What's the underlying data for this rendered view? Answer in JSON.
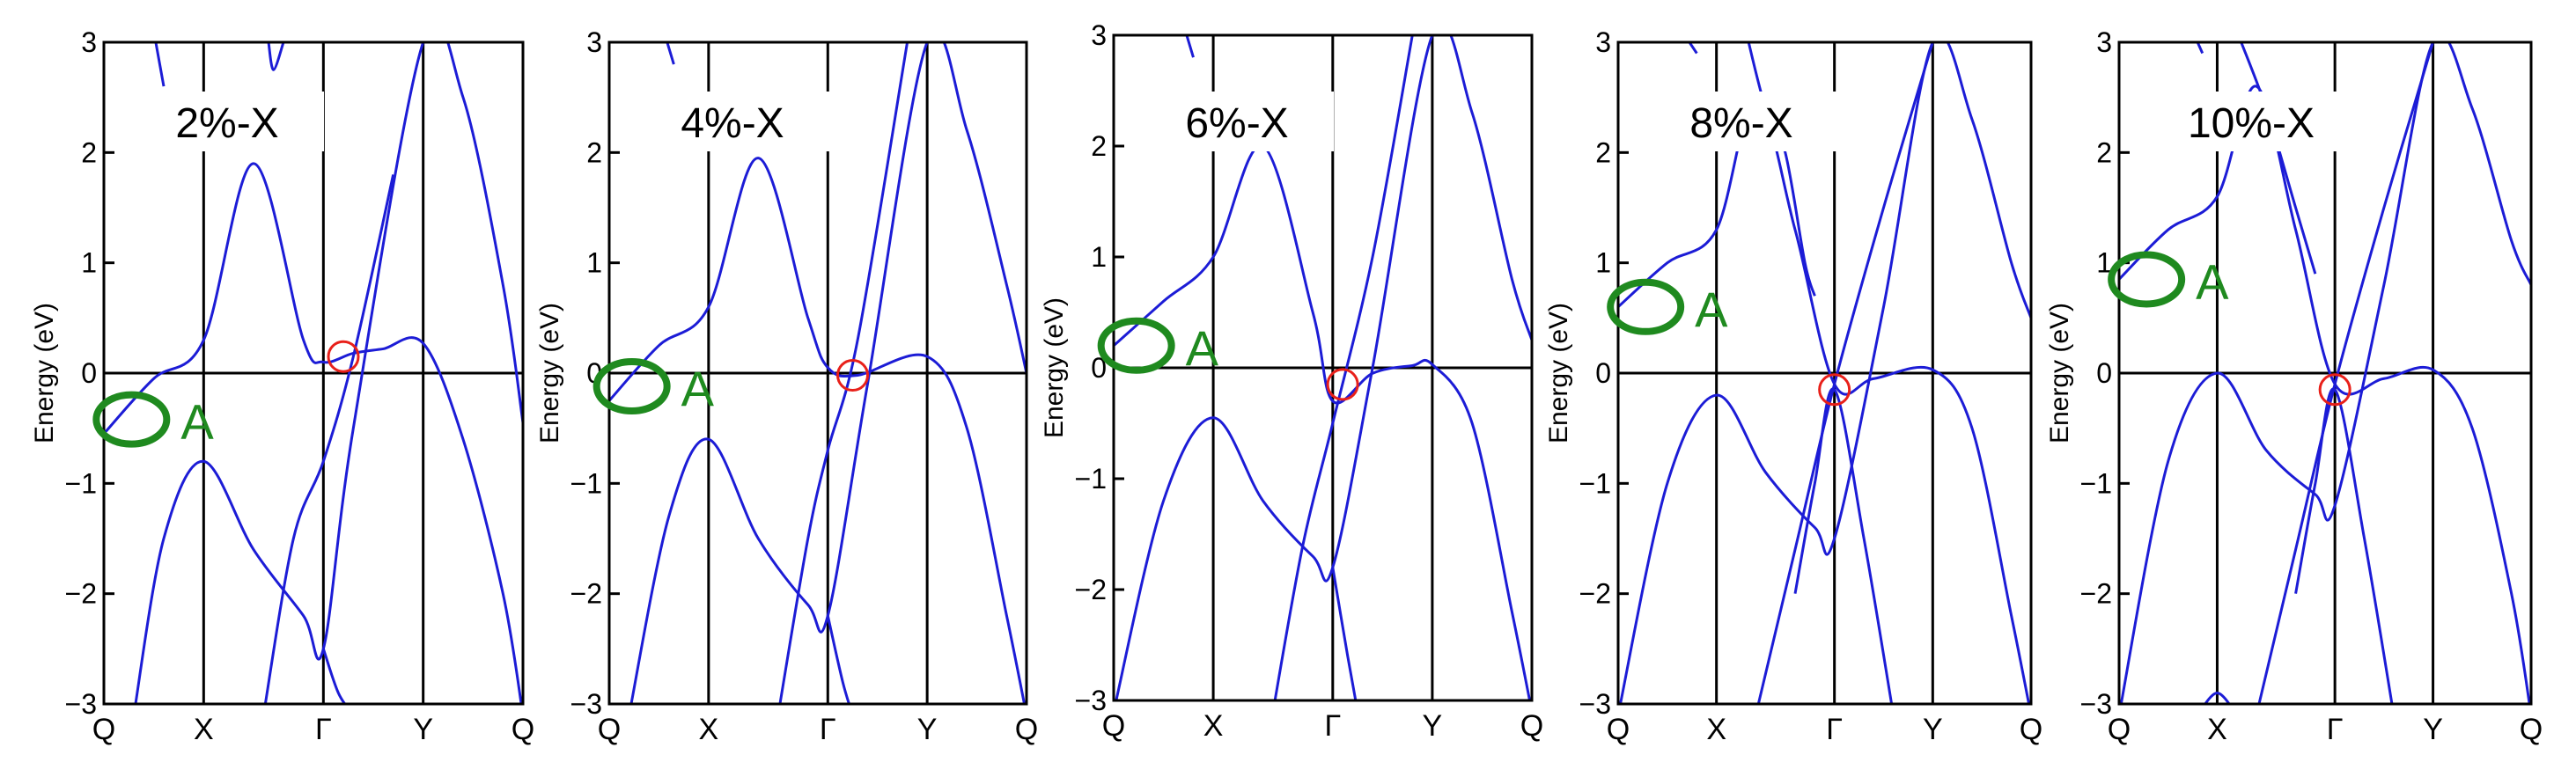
{
  "figure": {
    "colors": {
      "band": "#1c1cd6",
      "axis": "#000000",
      "valley_marker": "#1f8a1f",
      "crossing_marker": "#e8201a",
      "label_bg": "#ffffff"
    }
  },
  "chart_data": [
    {
      "type": "line",
      "title": "2%-X",
      "ylabel": "Energy (eV)",
      "ylim": [
        -3,
        3
      ],
      "yticks": [
        "3",
        "2",
        "1",
        "0",
        "−1",
        "−2",
        "−3"
      ],
      "xticks": [
        "Q",
        "X",
        "Γ",
        "Y",
        "Q"
      ],
      "xtick_positions": [
        0,
        1,
        2.2,
        3.2,
        4.2
      ],
      "fermi_level": 0,
      "valley_marker": {
        "label": "A",
        "x": 0.1,
        "y": -0.42
      },
      "crossing_marker": {
        "x": 2.4,
        "y": 0.15
      },
      "series": [
        {
          "x": [
            0,
            0.5,
            1,
            1.5,
            2,
            2.2,
            2.5,
            2.8,
            3.2,
            3.6,
            4,
            4.2
          ],
          "y": [
            -0.55,
            -0.05,
            0.3,
            1.9,
            0.3,
            0.1,
            0.18,
            0.22,
            0.27,
            -0.6,
            -2.0,
            -3.1
          ]
        },
        {
          "x": [
            0.3,
            0.6,
            1,
            1.5,
            2,
            2.2,
            2.5,
            3.2,
            3.6,
            4,
            4.2
          ],
          "y": [
            -3.1,
            -1.5,
            -0.8,
            -1.6,
            -2.2,
            -2.5,
            -0.5,
            3.0,
            2.5,
            0.8,
            -0.45
          ]
        },
        {
          "x": [
            1.6,
            1.9,
            2.2,
            2.5,
            2.9
          ],
          "y": [
            -3.1,
            -1.5,
            -0.8,
            0.15,
            1.8
          ]
        },
        {
          "x": [
            2.2,
            2.35,
            2.5
          ],
          "y": [
            -2.5,
            -2.9,
            -3.1
          ]
        },
        {
          "x": [
            1.65,
            1.7,
            1.8
          ],
          "y": [
            3.0,
            2.75,
            3.0
          ]
        },
        {
          "x": [
            0.5,
            0.6
          ],
          "y": [
            3.1,
            2.6
          ]
        }
      ]
    },
    {
      "type": "line",
      "title": "4%-X",
      "ylabel": "Energy (eV)",
      "ylim": [
        -3,
        3
      ],
      "yticks": [
        "3",
        "2",
        "1",
        "0",
        "−1",
        "−2",
        "−3"
      ],
      "xticks": [
        "Q",
        "X",
        "Γ",
        "Y",
        "Q"
      ],
      "xtick_positions": [
        0,
        1,
        2.2,
        3.2,
        4.2
      ],
      "fermi_level": 0,
      "valley_marker": {
        "label": "A",
        "x": 0.05,
        "y": -0.12
      },
      "crossing_marker": {
        "x": 2.45,
        "y": -0.02
      },
      "series": [
        {
          "x": [
            0,
            0.5,
            1,
            1.5,
            2,
            2.2,
            2.5,
            3.2,
            3.6,
            4,
            4.2
          ],
          "y": [
            -0.25,
            0.25,
            0.6,
            1.95,
            0.5,
            0.05,
            -0.02,
            0.15,
            -0.5,
            -2.2,
            -3.1
          ]
        },
        {
          "x": [
            0.2,
            0.6,
            1,
            1.5,
            2,
            2.2,
            2.6,
            3.2,
            3.6,
            4,
            4.2
          ],
          "y": [
            -3.1,
            -1.3,
            -0.6,
            -1.5,
            -2.1,
            -2.2,
            -0.1,
            3.0,
            2.2,
            0.8,
            0.0
          ]
        },
        {
          "x": [
            1.7,
            2.0,
            2.2,
            2.5,
            3.0
          ],
          "y": [
            -3.1,
            -1.5,
            -0.7,
            0.3,
            3.0
          ]
        },
        {
          "x": [
            2.2,
            2.35,
            2.45
          ],
          "y": [
            -2.2,
            -2.8,
            -3.1
          ]
        },
        {
          "x": [
            0.55,
            0.65
          ],
          "y": [
            3.1,
            2.8
          ]
        }
      ]
    },
    {
      "type": "line",
      "title": "6%-X",
      "ylabel": "Energy (eV)",
      "ylim": [
        -3,
        3
      ],
      "yticks": [
        "3",
        "2",
        "1",
        "0",
        "−1",
        "−2",
        "−3"
      ],
      "xticks": [
        "Q",
        "X",
        "Γ",
        "Y",
        "Q"
      ],
      "xtick_positions": [
        0,
        1,
        2.2,
        3.2,
        4.2
      ],
      "fermi_level": 0,
      "valley_marker": {
        "label": "A",
        "x": 0.05,
        "y": 0.2
      },
      "crossing_marker": {
        "x": 2.3,
        "y": -0.15
      },
      "series": [
        {
          "x": [
            0,
            0.5,
            1,
            1.5,
            2,
            2.2,
            2.6,
            3.0,
            3.2,
            3.6,
            4,
            4.2
          ],
          "y": [
            0.2,
            0.6,
            1.0,
            2.0,
            0.5,
            -0.3,
            -0.05,
            0.02,
            0.03,
            -0.5,
            -2.2,
            -3.1
          ]
        },
        {
          "x": [
            0.0,
            0.5,
            1,
            1.5,
            2,
            2.2,
            2.6,
            3.2,
            3.6,
            4,
            4.2
          ],
          "y": [
            -3.1,
            -1.2,
            -0.45,
            -1.2,
            -1.7,
            -1.8,
            0.0,
            3.0,
            2.3,
            0.8,
            0.25
          ]
        },
        {
          "x": [
            1.6,
            1.9,
            2.2,
            2.6,
            3.0
          ],
          "y": [
            -3.1,
            -1.6,
            -0.5,
            1.0,
            3.0
          ]
        },
        {
          "x": [
            2.2,
            2.35,
            2.45
          ],
          "y": [
            -1.8,
            -2.6,
            -3.1
          ]
        },
        {
          "x": [
            0.7,
            0.8
          ],
          "y": [
            3.1,
            2.8
          ]
        }
      ]
    },
    {
      "type": "line",
      "title": "8%-X",
      "ylabel": "Energy (eV)",
      "ylim": [
        -3,
        3
      ],
      "yticks": [
        "3",
        "2",
        "1",
        "0",
        "−1",
        "−2",
        "−3"
      ],
      "xticks": [
        "Q",
        "X",
        "Γ",
        "Y",
        "Q"
      ],
      "xtick_positions": [
        0,
        1,
        2.2,
        3.2,
        4.2
      ],
      "fermi_level": 0,
      "valley_marker": {
        "label": "A",
        "x": 0.1,
        "y": 0.6
      },
      "crossing_marker": {
        "x": 2.2,
        "y": -0.15
      },
      "series": [
        {
          "x": [
            0,
            0.5,
            1,
            1.4,
            1.8,
            2.2,
            2.6,
            3.2,
            3.6,
            4,
            4.2
          ],
          "y": [
            0.6,
            1.0,
            1.3,
            2.5,
            1.3,
            -0.1,
            -0.05,
            0.03,
            -0.5,
            -2.2,
            -3.1
          ]
        },
        {
          "x": [
            0.0,
            0.5,
            1,
            1.5,
            2.0,
            2.2,
            2.7,
            3.2,
            3.6,
            4,
            4.2
          ],
          "y": [
            -3.1,
            -1.0,
            -0.2,
            -0.9,
            -1.4,
            -1.5,
            0.6,
            3.0,
            2.3,
            1.0,
            0.5
          ]
        },
        {
          "x": [
            1.4,
            1.8,
            2.2,
            2.7,
            3.2
          ],
          "y": [
            -3.1,
            -1.6,
            -0.1,
            1.5,
            3.0
          ]
        },
        {
          "x": [
            1.8,
            2.0,
            2.2,
            2.5,
            2.8
          ],
          "y": [
            -2.0,
            -1.0,
            -0.15,
            -1.5,
            -3.1
          ]
        },
        {
          "x": [
            1.3,
            1.5,
            1.7,
            1.9,
            2.0
          ],
          "y": [
            3.1,
            2.4,
            2.0,
            1.0,
            0.7
          ]
        },
        {
          "x": [
            0.65,
            0.8
          ],
          "y": [
            3.1,
            2.9
          ]
        }
      ]
    },
    {
      "type": "line",
      "title": "10%-X",
      "ylabel": "Energy (eV)",
      "ylim": [
        -3,
        3
      ],
      "yticks": [
        "3",
        "2",
        "1",
        "0",
        "−1",
        "−2",
        "−3"
      ],
      "xticks": [
        "Q",
        "X",
        "Γ",
        "Y",
        "Q"
      ],
      "xtick_positions": [
        0,
        1,
        2.2,
        3.2,
        4.2
      ],
      "fermi_level": 0,
      "valley_marker": {
        "label": "A",
        "x": 0.1,
        "y": 0.85
      },
      "crossing_marker": {
        "x": 2.2,
        "y": -0.15
      },
      "series": [
        {
          "x": [
            0,
            0.5,
            1,
            1.4,
            1.8,
            2.2,
            2.7,
            3.2,
            3.6,
            4,
            4.2
          ],
          "y": [
            0.85,
            1.3,
            1.6,
            2.6,
            1.3,
            -0.1,
            -0.05,
            0.03,
            -0.5,
            -2.0,
            -3.1
          ]
        },
        {
          "x": [
            0.0,
            0.5,
            1,
            1.5,
            2.0,
            2.2,
            2.7,
            3.2,
            3.6,
            4,
            4.2
          ],
          "y": [
            -3.1,
            -0.8,
            0.0,
            -0.7,
            -1.1,
            -1.2,
            0.8,
            3.0,
            2.4,
            1.2,
            0.8
          ]
        },
        {
          "x": [
            1.4,
            1.8,
            2.2,
            2.7,
            3.2
          ],
          "y": [
            -3.1,
            -1.6,
            -0.1,
            1.5,
            3.0
          ]
        },
        {
          "x": [
            1.8,
            2.0,
            2.2,
            2.5,
            2.8
          ],
          "y": [
            -2.0,
            -1.0,
            -0.15,
            -1.5,
            -3.1
          ]
        },
        {
          "x": [
            0.8,
            1.0,
            1.2
          ],
          "y": [
            -3.1,
            -2.9,
            -3.1
          ]
        },
        {
          "x": [
            1.2,
            1.5,
            1.8,
            2.0
          ],
          "y": [
            3.1,
            2.4,
            1.5,
            0.9
          ]
        },
        {
          "x": [
            0.75,
            0.85
          ],
          "y": [
            3.1,
            2.9
          ]
        }
      ]
    }
  ]
}
